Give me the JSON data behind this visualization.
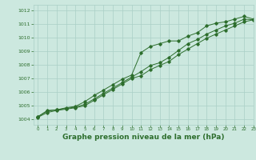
{
  "bg_color": "#cce8df",
  "grid_color": "#aacfc6",
  "line_color": "#2d6e2d",
  "marker_color": "#2d6e2d",
  "xlabel": "Graphe pression niveau de la mer (hPa)",
  "xlabel_fontsize": 6.5,
  "xlim": [
    -0.5,
    23
  ],
  "ylim": [
    1003.6,
    1012.4
  ],
  "yticks": [
    1004,
    1005,
    1006,
    1007,
    1008,
    1009,
    1010,
    1011,
    1012
  ],
  "xticks": [
    0,
    1,
    2,
    3,
    4,
    5,
    6,
    7,
    8,
    9,
    10,
    11,
    12,
    13,
    14,
    15,
    16,
    17,
    18,
    19,
    20,
    21,
    22,
    23
  ],
  "series1": [
    1004.2,
    1004.65,
    1004.7,
    1004.85,
    1004.95,
    1005.3,
    1005.75,
    1006.15,
    1006.55,
    1006.95,
    1007.25,
    1008.9,
    1009.35,
    1009.55,
    1009.75,
    1009.75,
    1010.1,
    1010.35,
    1010.85,
    1011.05,
    1011.15,
    1011.35,
    1011.55,
    1011.35
  ],
  "series2": [
    1004.2,
    1004.6,
    1004.7,
    1004.8,
    1004.9,
    1005.1,
    1005.5,
    1005.9,
    1006.3,
    1006.7,
    1007.1,
    1007.5,
    1007.95,
    1008.15,
    1008.55,
    1009.05,
    1009.55,
    1009.85,
    1010.25,
    1010.55,
    1010.85,
    1011.05,
    1011.35,
    1011.3
  ],
  "series3": [
    1004.15,
    1004.5,
    1004.65,
    1004.75,
    1004.85,
    1005.0,
    1005.4,
    1005.8,
    1006.2,
    1006.6,
    1007.0,
    1007.2,
    1007.65,
    1007.95,
    1008.25,
    1008.75,
    1009.15,
    1009.55,
    1009.95,
    1010.25,
    1010.55,
    1010.85,
    1011.15,
    1011.3
  ]
}
